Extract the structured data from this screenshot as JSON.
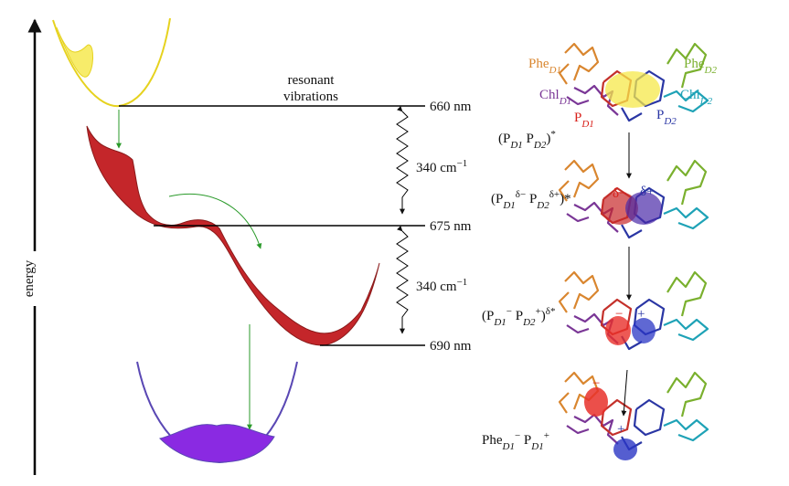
{
  "energy_axis": {
    "label": "energy"
  },
  "annotation": {
    "line1": "resonant",
    "line2": "vibrations"
  },
  "levels": [
    "660 nm",
    "675 nm",
    "690 nm"
  ],
  "spacings": [
    {
      "value": "340 cm",
      "exponent": "−1"
    },
    {
      "value": "340 cm",
      "exponent": "−1"
    }
  ],
  "molecule_labels": [
    {
      "name": "Phe",
      "sub": "D1"
    },
    {
      "name": "Chl",
      "sub": "D1"
    },
    {
      "name": "P",
      "sub": "D1"
    },
    {
      "name": "P",
      "sub": "D2"
    },
    {
      "name": "Chl",
      "sub": "D2"
    },
    {
      "name": "Phe",
      "sub": "D2"
    }
  ],
  "states": [
    {
      "label": [
        "(P",
        "D1",
        " P",
        "D2",
        ")",
        "*"
      ],
      "charges": []
    },
    {
      "label": [
        "(P",
        "D1",
        "δ−",
        " P",
        "D2",
        "δ+",
        ")*"
      ],
      "charges": [
        "δ−",
        "δ+"
      ]
    },
    {
      "label": [
        "(P",
        "D1",
        "−",
        " P",
        "D2",
        "+",
        ")",
        "δ*"
      ],
      "charges": [
        "−",
        "+"
      ]
    },
    {
      "label": [
        "Phe",
        "D1",
        "−",
        " P",
        "D1",
        "+"
      ],
      "charges": [
        "−",
        "+"
      ]
    }
  ]
}
